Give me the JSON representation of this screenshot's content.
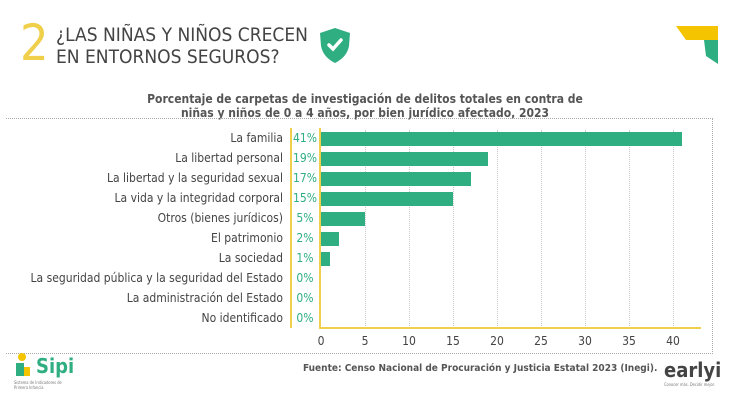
{
  "header": {
    "number": "2",
    "title_line1": "¿LAS NIÑAS Y NIÑOS CRECEN",
    "title_line2": "EN ENTORNOS SEGUROS?"
  },
  "chart_data": {
    "type": "bar",
    "orientation": "horizontal",
    "title_line1": "Porcentaje de carpetas de investigación de delitos totales en contra de",
    "title_line2": "niñas y niños de 0 a 4 años, por bien jurídico afectado, 2023",
    "categories": [
      "La familia",
      "La libertad personal",
      "La libertad y la seguridad sexual",
      "La vida y la integridad corporal",
      "Otros (bienes jurídicos)",
      "El patrimonio",
      "La sociedad",
      "La seguridad pública y la seguridad del Estado",
      "La administración del Estado",
      "No identificado"
    ],
    "values": [
      41,
      19,
      17,
      15,
      5,
      2,
      1,
      0,
      0,
      0
    ],
    "data_labels": [
      "41%",
      "19%",
      "17%",
      "15%",
      "5%",
      "2%",
      "1%",
      "0%",
      "0%",
      "0%"
    ],
    "xlim": [
      0,
      40
    ],
    "xticks": [
      "0",
      "5",
      "10",
      "15",
      "20",
      "25",
      "30",
      "35",
      "40"
    ],
    "bar_color": "#2fae82",
    "label_color": "#2fae82",
    "axis_color": "#f0cf4a"
  },
  "footer": {
    "source": "Fuente: Censo Nacional de Procuración y Justicia Estatal 2023 (Inegi).",
    "sipi_logo": "Sipi",
    "sipi_sub": "Sistema de Indicadores de Primera Infancia",
    "early_logo": "earlyi",
    "early_tagline": "Conocer más. Decidir mejor."
  }
}
